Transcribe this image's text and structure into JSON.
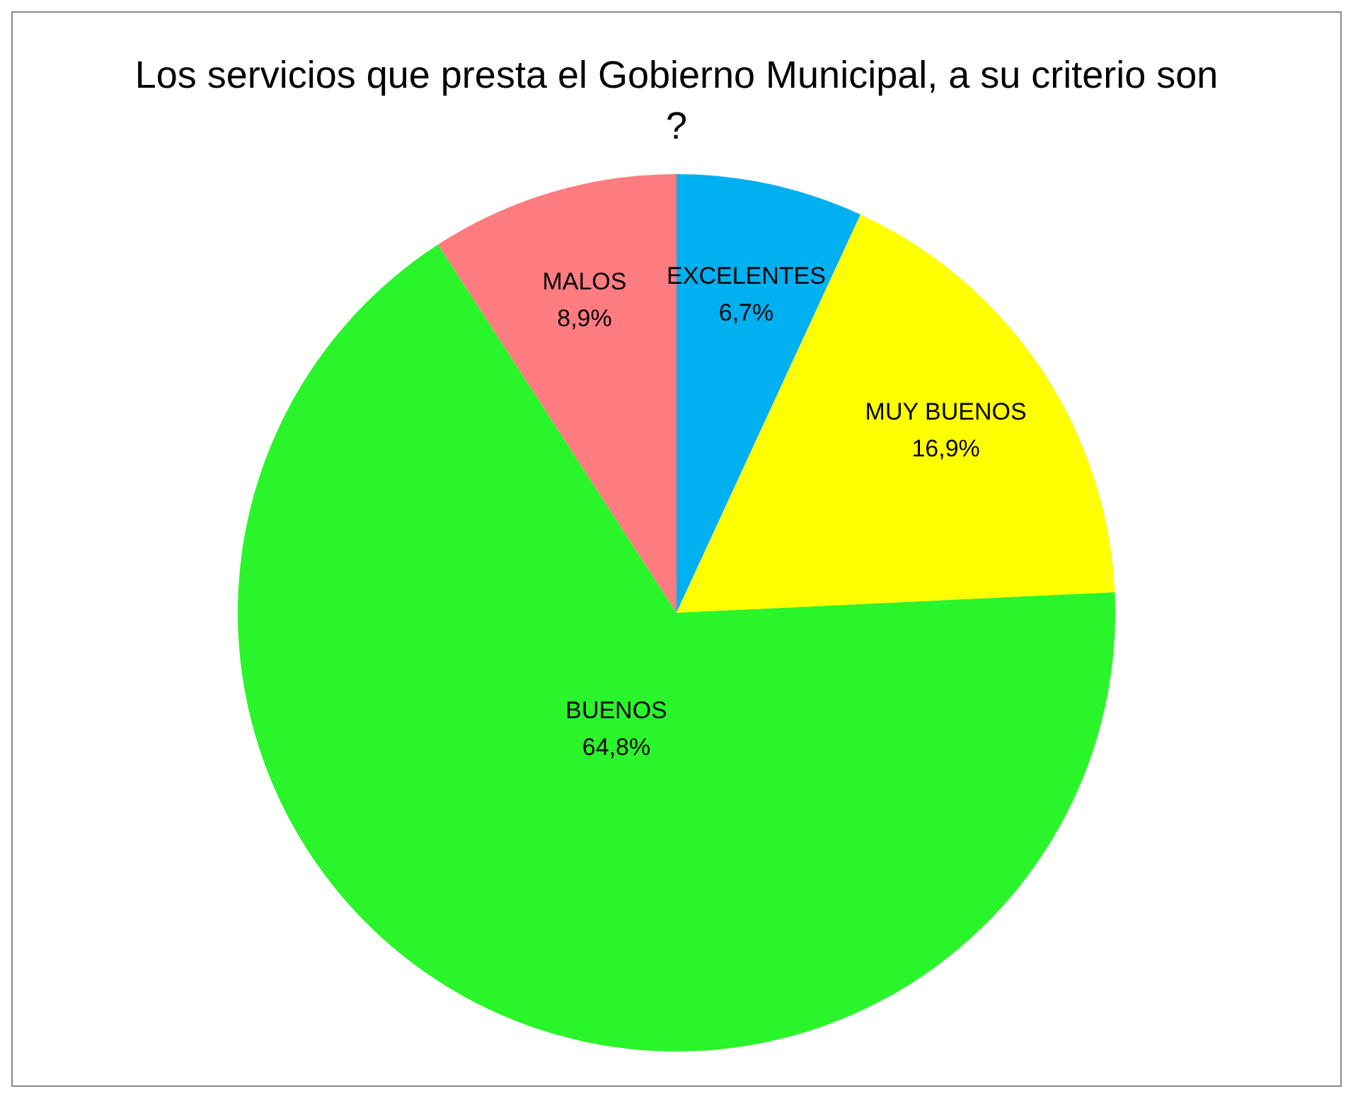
{
  "chart_data": {
    "type": "pie",
    "title": "Los servicios que presta el Gobierno Municipal, a su criterio son ?",
    "categories": [
      "EXCELENTES",
      "MUY BUENOS",
      "BUENOS",
      "MALOS"
    ],
    "values": [
      6.7,
      16.9,
      64.8,
      8.9
    ],
    "colors": [
      "#00b0f0",
      "#ffff00",
      "#2af52a",
      "#ff7c80"
    ],
    "value_labels": [
      "6,7%",
      "16,9%",
      "64,8%",
      "8,9%"
    ],
    "legend": false
  }
}
